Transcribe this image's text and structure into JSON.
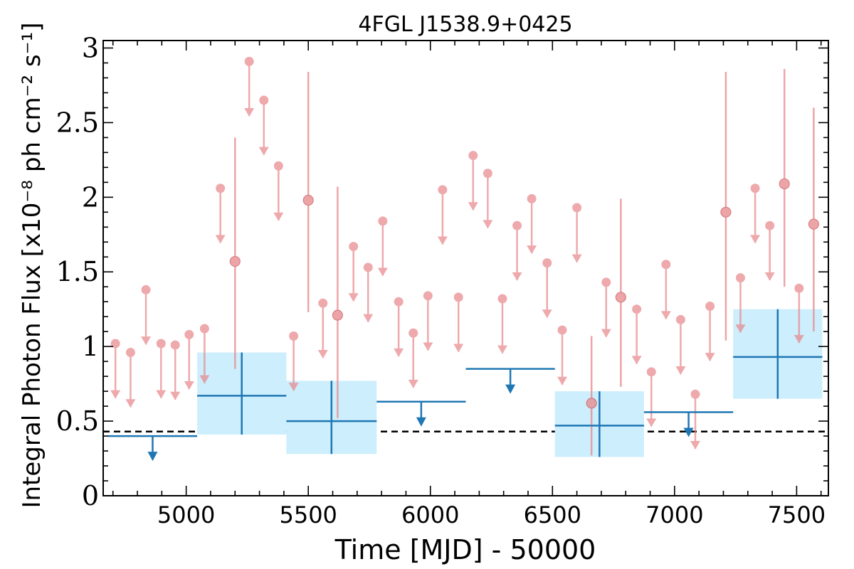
{
  "chart_data": {
    "type": "scatter",
    "title": "4FGL J1538.9+0425",
    "xlabel": "Time [MJD] - 50000",
    "ylabel": "Integral Photon Flux [x10⁻⁸ ph cm⁻² s⁻¹]",
    "xlim": [
      4660,
      7630
    ],
    "ylim": [
      0,
      3.05
    ],
    "xticks": [
      5000,
      5500,
      6000,
      6500,
      7000,
      7500
    ],
    "xtick_labels": [
      "5000",
      "5500",
      "6000",
      "6500",
      "7000",
      "7500"
    ],
    "yticks": [
      0,
      0.5,
      1,
      1.5,
      2,
      2.5,
      3
    ],
    "ytick_labels": [
      "0",
      "0.5",
      "1",
      "1.5",
      "2",
      "2.5",
      "3"
    ],
    "reference_level": 0.43,
    "colors": {
      "short_bins": "#e8868a",
      "long_bins": "#1f77b4",
      "error_box": "#cdeefc",
      "reference_line": "#000000"
    },
    "series": [
      {
        "kind": "short_bins_upper_limits",
        "points": [
          {
            "x": 4710,
            "y": 1.02
          },
          {
            "x": 4772,
            "y": 0.96
          },
          {
            "x": 4835,
            "y": 1.38
          },
          {
            "x": 4897,
            "y": 1.02
          },
          {
            "x": 4955,
            "y": 1.01
          },
          {
            "x": 5012,
            "y": 1.08
          },
          {
            "x": 5075,
            "y": 1.12
          },
          {
            "x": 5140,
            "y": 2.06
          },
          {
            "x": 5258,
            "y": 2.91
          },
          {
            "x": 5318,
            "y": 2.65
          },
          {
            "x": 5378,
            "y": 2.21
          },
          {
            "x": 5440,
            "y": 1.07
          },
          {
            "x": 5560,
            "y": 1.29
          },
          {
            "x": 5685,
            "y": 1.67
          },
          {
            "x": 5745,
            "y": 1.53
          },
          {
            "x": 5805,
            "y": 1.84
          },
          {
            "x": 5870,
            "y": 1.3
          },
          {
            "x": 5930,
            "y": 1.09
          },
          {
            "x": 5990,
            "y": 1.34
          },
          {
            "x": 6050,
            "y": 2.05
          },
          {
            "x": 6115,
            "y": 1.33
          },
          {
            "x": 6175,
            "y": 2.28
          },
          {
            "x": 6235,
            "y": 2.16
          },
          {
            "x": 6295,
            "y": 1.32
          },
          {
            "x": 6355,
            "y": 1.81
          },
          {
            "x": 6415,
            "y": 1.99
          },
          {
            "x": 6478,
            "y": 1.56
          },
          {
            "x": 6540,
            "y": 1.11
          },
          {
            "x": 6600,
            "y": 1.93
          },
          {
            "x": 6720,
            "y": 1.43
          },
          {
            "x": 6845,
            "y": 1.25
          },
          {
            "x": 6905,
            "y": 0.83
          },
          {
            "x": 6965,
            "y": 1.55
          },
          {
            "x": 7025,
            "y": 1.18
          },
          {
            "x": 7085,
            "y": 0.68
          },
          {
            "x": 7145,
            "y": 1.27
          },
          {
            "x": 7270,
            "y": 1.46
          },
          {
            "x": 7330,
            "y": 2.06
          },
          {
            "x": 7390,
            "y": 1.81
          },
          {
            "x": 7510,
            "y": 1.39
          }
        ]
      },
      {
        "kind": "short_bins_detections",
        "points": [
          {
            "x": 5200,
            "y": 1.57,
            "ylo": 0.85,
            "yhi": 2.4
          },
          {
            "x": 5500,
            "y": 1.98,
            "ylo": 1.23,
            "yhi": 2.84
          },
          {
            "x": 5620,
            "y": 1.21,
            "ylo": 0.52,
            "yhi": 2.07
          },
          {
            "x": 6660,
            "y": 0.62,
            "ylo": 0.27,
            "yhi": 1.07
          },
          {
            "x": 6780,
            "y": 1.33,
            "ylo": 0.73,
            "yhi": 1.99
          },
          {
            "x": 7210,
            "y": 1.9,
            "ylo": 1.04,
            "yhi": 2.84
          },
          {
            "x": 7450,
            "y": 2.09,
            "ylo": 1.4,
            "yhi": 2.86
          },
          {
            "x": 7570,
            "y": 1.82,
            "ylo": 1.1,
            "yhi": 2.6
          }
        ]
      },
      {
        "kind": "long_bins_upper_limits",
        "points": [
          {
            "x0": 4680,
            "x1": 5045,
            "y": 0.4
          },
          {
            "x0": 5780,
            "x1": 6145,
            "y": 0.63
          },
          {
            "x0": 6145,
            "x1": 6510,
            "y": 0.85
          },
          {
            "x0": 6875,
            "x1": 7240,
            "y": 0.56
          }
        ]
      },
      {
        "kind": "long_bins_detections",
        "points": [
          {
            "x0": 5045,
            "x1": 5410,
            "y": 0.67,
            "ylo": 0.41,
            "yhi": 0.96
          },
          {
            "x0": 5410,
            "x1": 5780,
            "y": 0.5,
            "ylo": 0.28,
            "yhi": 0.77
          },
          {
            "x0": 6510,
            "x1": 6875,
            "y": 0.47,
            "ylo": 0.26,
            "yhi": 0.7
          },
          {
            "x0": 7240,
            "x1": 7605,
            "y": 0.93,
            "ylo": 0.65,
            "yhi": 1.25
          }
        ]
      }
    ]
  }
}
